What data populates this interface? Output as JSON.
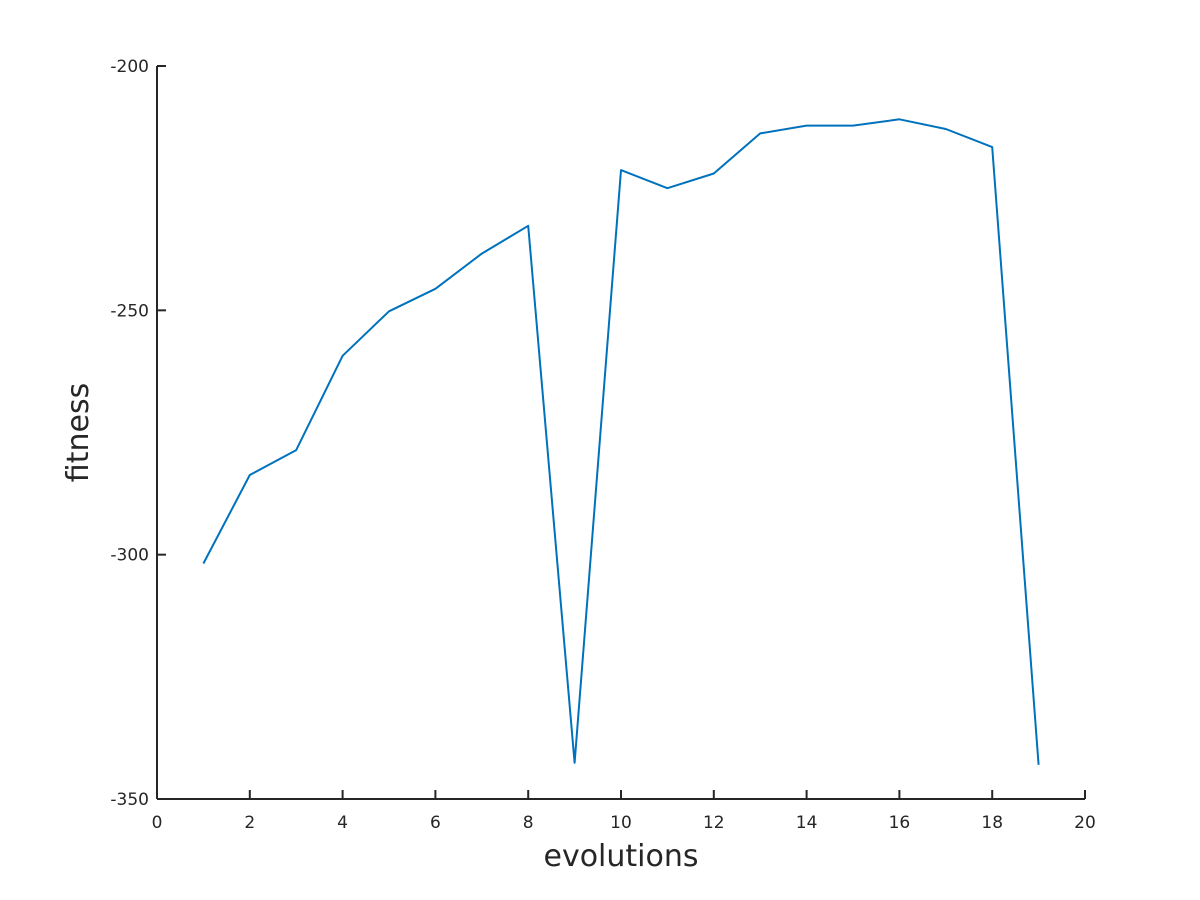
{
  "chart_data": {
    "type": "line",
    "title": "",
    "xlabel": "evolutions",
    "ylabel": "fitness",
    "xlim": [
      0,
      20
    ],
    "ylim": [
      -350,
      -200
    ],
    "xticks": [
      0,
      2,
      4,
      6,
      8,
      10,
      12,
      14,
      16,
      18,
      20
    ],
    "yticks": [
      -350,
      -300,
      -250,
      -200
    ],
    "xtick_labels": [
      "0",
      "2",
      "4",
      "6",
      "8",
      "10",
      "12",
      "14",
      "16",
      "18",
      "20"
    ],
    "ytick_labels": [
      "-350",
      "-300",
      "-250",
      "-200"
    ],
    "grid": false,
    "series": [
      {
        "name": "fitness",
        "color": "#0072BD",
        "x": [
          1,
          2,
          3,
          4,
          5,
          6,
          7,
          8,
          9,
          10,
          11,
          12,
          13,
          14,
          15,
          16,
          17,
          18,
          19
        ],
        "y": [
          -301.8,
          -283.7,
          -278.6,
          -259.3,
          -250.2,
          -245.6,
          -238.4,
          -232.7,
          -342.6,
          -221.3,
          -225.0,
          -222.0,
          -213.8,
          -212.2,
          -212.2,
          -210.9,
          -212.9,
          -216.6,
          -343.0
        ]
      }
    ]
  }
}
